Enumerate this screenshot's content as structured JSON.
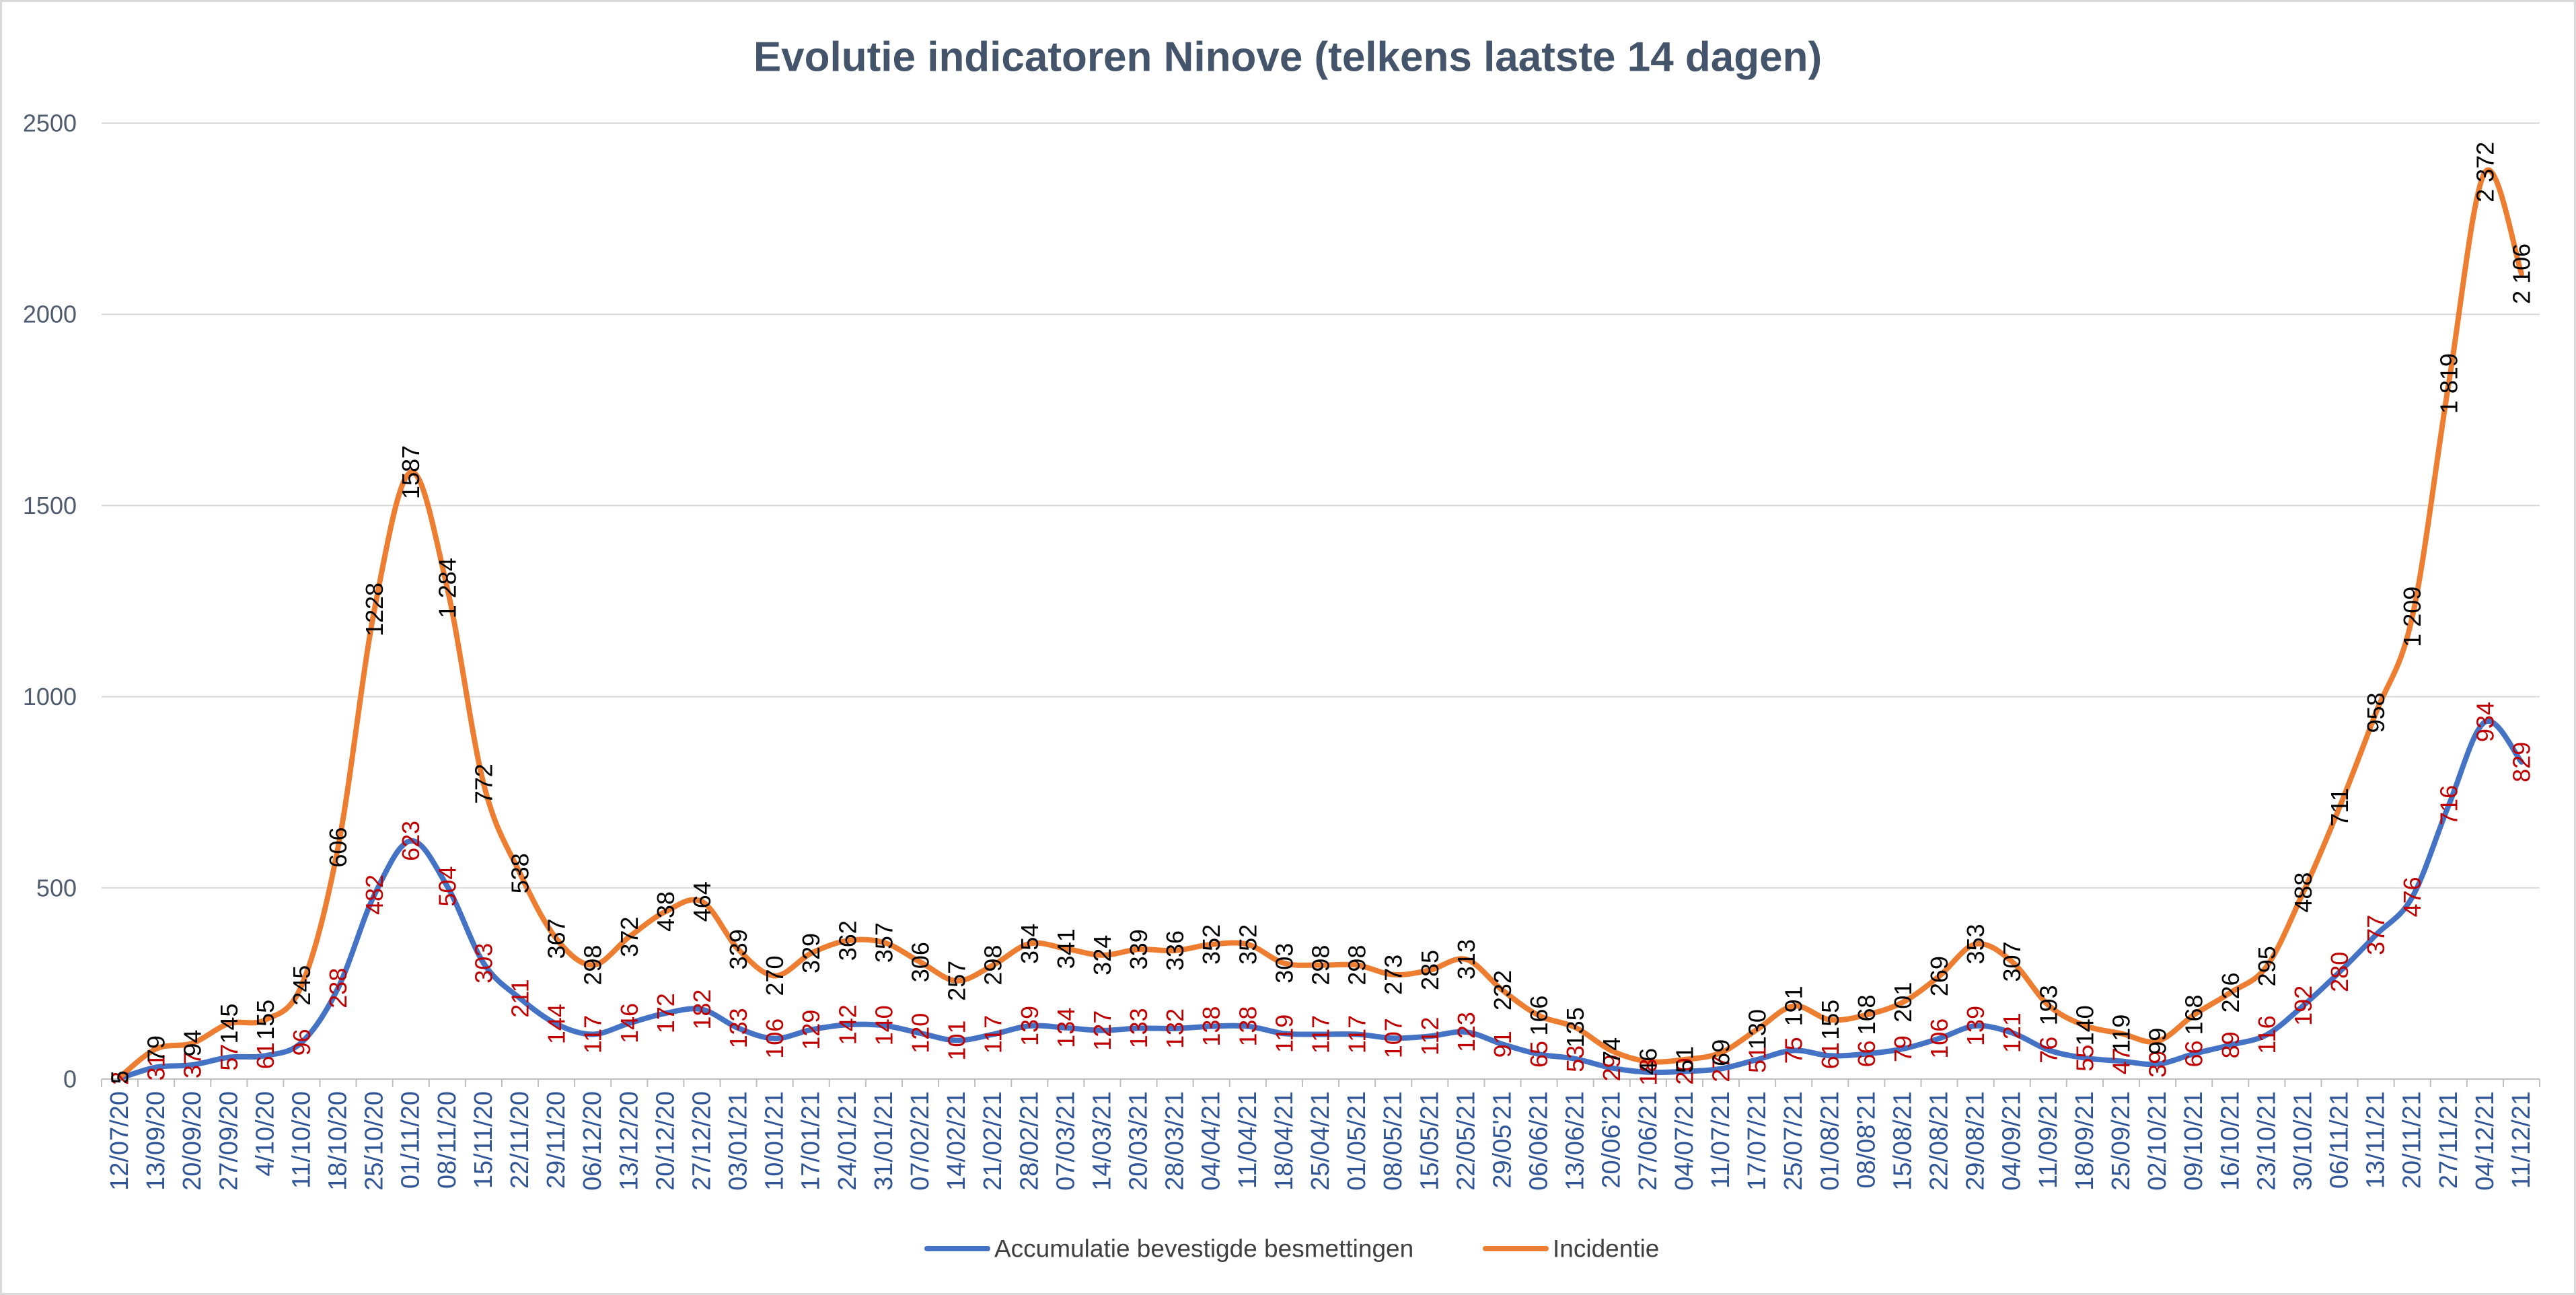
{
  "chart_data": {
    "type": "line",
    "title": "Evolutie indicatoren Ninove (telkens laatste 14 dagen)",
    "title_color": "#44546A",
    "xlabel": "",
    "ylabel": "",
    "ylim": [
      0,
      2500
    ],
    "yticks": [
      0,
      500,
      1000,
      1500,
      2000,
      2500
    ],
    "ytick_labels": [
      "0",
      "500",
      "1000",
      "1500",
      "2000",
      "2500"
    ],
    "grid": true,
    "legend": "bottom",
    "categories": [
      "12/07/20",
      "13/09/20",
      "20/09/20",
      "27/09/20",
      "4/10/20",
      "11/10/20",
      "18/10/20",
      "25/10/20",
      "01/11/20",
      "08/11/20",
      "15/11/20",
      "22/11/20",
      "29/11/20",
      "06/12/20",
      "13/12/20",
      "20/12/20",
      "27/12/20",
      "03/01/21",
      "10/01/21",
      "17/01/21",
      "24/01/21",
      "31/01/21",
      "07/02/21",
      "14/02/21",
      "21/02/21",
      "28/02/21",
      "07/03/21",
      "14/03/21",
      "20/03/21",
      "28/03/21",
      "04/04/21",
      "11/04/21",
      "18/04/21",
      "25/04/21",
      "01/05/21",
      "08/05/21",
      "15/05/21",
      "22/05/21",
      "29/05'21",
      "06/06/21",
      "13/06/21",
      "20/06'21",
      "27/06/21",
      "04/07/21",
      "11/07/21",
      "17/07/21",
      "25/07/21",
      "01/08/21",
      "08/08'21",
      "15/08/21",
      "22/08/21",
      "29/08/21",
      "04/09/21",
      "11/09/21",
      "18/09/21",
      "25/09/21",
      "02/10/21",
      "09/10/21",
      "16/10/21",
      "23/10/21",
      "30/10/21",
      "06/11/21",
      "13/11/21",
      "20/11/21",
      "27/11/21",
      "04/12/21",
      "11/12/21"
    ],
    "series": [
      {
        "name": "Accumulatie bevestigde besmettingen",
        "color": "#4472C4",
        "label_color": "#C00000",
        "values": [
          2,
          31,
          37,
          57,
          61,
          96,
          238,
          482,
          623,
          504,
          303,
          211,
          144,
          117,
          146,
          172,
          182,
          133,
          106,
          129,
          142,
          140,
          120,
          101,
          117,
          139,
          134,
          127,
          133,
          132,
          138,
          138,
          119,
          117,
          117,
          107,
          112,
          123,
          91,
          65,
          53,
          29,
          18,
          20,
          27,
          51,
          75,
          61,
          66,
          79,
          106,
          139,
          121,
          76,
          55,
          47,
          39,
          66,
          89,
          116,
          192,
          280,
          377,
          476,
          716,
          934,
          829
        ],
        "labels": [
          "2",
          "31",
          "37",
          "57",
          "61",
          "96",
          "238",
          "482",
          "623",
          "504",
          "303",
          "211",
          "144",
          "117",
          "146",
          "172",
          "182",
          "133",
          "106",
          "129",
          "142",
          "140",
          "120",
          "101",
          "117",
          "139",
          "134",
          "127",
          "133",
          "132",
          "138",
          "138",
          "119",
          "117",
          "117",
          "107",
          "112",
          "123",
          "91",
          "65",
          "53",
          "29",
          "18",
          "20",
          "27",
          "51",
          "75",
          "61",
          "66",
          "79",
          "106",
          "139",
          "121",
          "76",
          "55",
          "47",
          "39",
          "66",
          "89",
          "116",
          "192",
          "280",
          "377",
          "476",
          "716",
          "934",
          "829"
        ]
      },
      {
        "name": "Incidentie",
        "color": "#ED7D31",
        "label_color": "#000000",
        "values": [
          5,
          79,
          94,
          145,
          155,
          245,
          606,
          1228,
          1587,
          1284,
          772,
          538,
          367,
          298,
          372,
          438,
          464,
          339,
          270,
          329,
          362,
          357,
          306,
          257,
          298,
          354,
          341,
          324,
          339,
          336,
          352,
          352,
          303,
          298,
          298,
          273,
          285,
          313,
          232,
          166,
          135,
          74,
          46,
          51,
          69,
          130,
          191,
          155,
          168,
          201,
          269,
          353,
          307,
          193,
          140,
          119,
          99,
          168,
          226,
          295,
          488,
          711,
          958,
          1209,
          1819,
          2372,
          2106
        ],
        "labels": [
          "5",
          "79",
          "94",
          "145",
          "155",
          "245",
          "606",
          "1228",
          "1587",
          "1 284",
          "772",
          "538",
          "367",
          "298",
          "372",
          "438",
          "464",
          "339",
          "270",
          "329",
          "362",
          "357",
          "306",
          "257",
          "298",
          "354",
          "341",
          "324",
          "339",
          "336",
          "352",
          "352",
          "303",
          "298",
          "298",
          "273",
          "285",
          "313",
          "232",
          "166",
          "135",
          "74",
          "46",
          "51",
          "69",
          "130",
          "191",
          "155",
          "168",
          "201",
          "269",
          "353",
          "307",
          "193",
          "140",
          "119",
          "99",
          "168",
          "226",
          "295",
          "488",
          "711",
          "958",
          "1 209",
          "1 819",
          "2 372",
          "2 106"
        ]
      }
    ]
  }
}
